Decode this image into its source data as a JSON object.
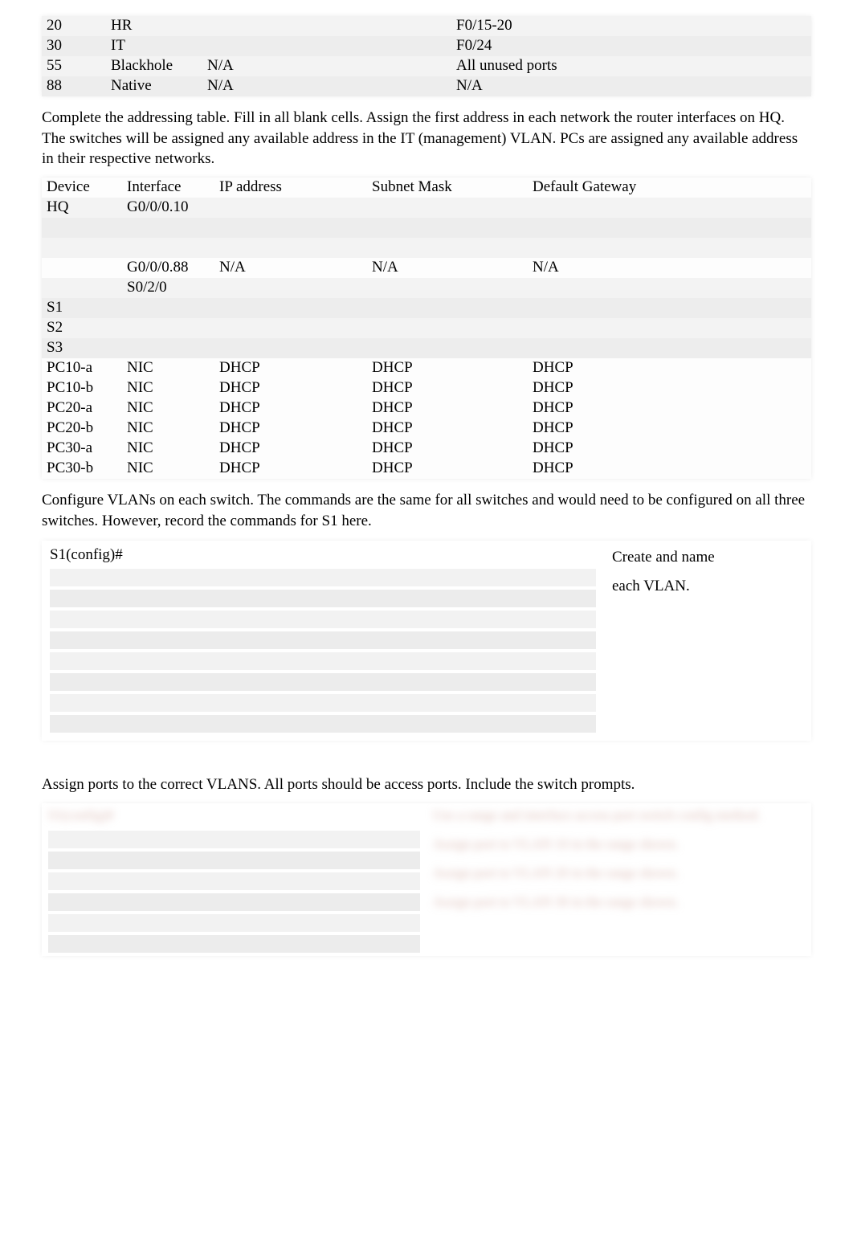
{
  "vlan_table": {
    "rows": [
      {
        "id": "20",
        "name": "HR",
        "col3": "",
        "ports": "F0/15-20"
      },
      {
        "id": "30",
        "name": "IT",
        "col3": "",
        "ports": "F0/24"
      },
      {
        "id": "55",
        "name": "Blackhole",
        "col3": "N/A",
        "ports": "All unused ports"
      },
      {
        "id": "88",
        "name": "Native",
        "col3": "N/A",
        "ports": "N/A"
      }
    ]
  },
  "para1": "Complete the addressing table. Fill in all blank cells. Assign the first address in each network the router interfaces on HQ. The switches will be assigned any available address in the IT (management) VLAN. PCs are assigned any available address in their respective networks.",
  "addr_table": {
    "headers": {
      "c1": "Device",
      "c2": "Interface",
      "c3": "IP address",
      "c4": "Subnet Mask",
      "c5": "Default Gateway"
    },
    "rows": [
      {
        "c1": "HQ",
        "c2": "G0/0/0.10",
        "c3": "",
        "c4": "",
        "c5": ""
      },
      {
        "c1": "",
        "c2": "",
        "c3": "",
        "c4": "",
        "c5": ""
      },
      {
        "c1": "",
        "c2": "",
        "c3": "",
        "c4": "",
        "c5": ""
      },
      {
        "c1": "",
        "c2": "G0/0/0.88",
        "c3": "N/A",
        "c4": "N/A",
        "c5": "N/A"
      },
      {
        "c1": "",
        "c2": "S0/2/0",
        "c3": "",
        "c4": "",
        "c5": ""
      },
      {
        "c1": "S1",
        "c2": "",
        "c3": "",
        "c4": "",
        "c5": ""
      },
      {
        "c1": "S2",
        "c2": "",
        "c3": "",
        "c4": "",
        "c5": ""
      },
      {
        "c1": "S3",
        "c2": "",
        "c3": "",
        "c4": "",
        "c5": ""
      },
      {
        "c1": "PC10-a",
        "c2": "NIC",
        "c3": "DHCP",
        "c4": "DHCP",
        "c5": "DHCP"
      },
      {
        "c1": "PC10-b",
        "c2": "NIC",
        "c3": "DHCP",
        "c4": "DHCP",
        "c5": "DHCP"
      },
      {
        "c1": "PC20-a",
        "c2": "NIC",
        "c3": "DHCP",
        "c4": "DHCP",
        "c5": "DHCP"
      },
      {
        "c1": "PC20-b",
        "c2": "NIC",
        "c3": "DHCP",
        "c4": "DHCP",
        "c5": "DHCP"
      },
      {
        "c1": "PC30-a",
        "c2": "NIC",
        "c3": "DHCP",
        "c4": "DHCP",
        "c5": "DHCP"
      },
      {
        "c1": "PC30-b",
        "c2": "NIC",
        "c3": "DHCP",
        "c4": "DHCP",
        "c5": "DHCP"
      }
    ]
  },
  "para2": "Configure VLANs on each switch.  The commands are the same for all switches and would need to be configured on all three switches.  However, record the commands for S1 here.",
  "cfg_block": {
    "prompt": "S1(config)#",
    "right_text_1": "Create and name",
    "right_text_2": "each VLAN.",
    "blank_count": 8
  },
  "para3": "Assign ports to the correct VLANS. All ports should be access ports. Include the switch prompts.",
  "assign_block": {
    "left_blur": "S1(config)#",
    "left_blank_count": 6,
    "right_items": [
      "Use a range and interface access port switch config method.",
      "Assign port to VLAN 10 in the range shown.",
      "Assign port to VLAN 20 in the range shown.",
      "Assign port to VLAN 30 in the range shown."
    ]
  },
  "colors": {
    "text": "#000000",
    "shade1": "#f3f3f3",
    "shade2": "#ededed",
    "blur": "rgba(200,150,140,0.65)"
  }
}
